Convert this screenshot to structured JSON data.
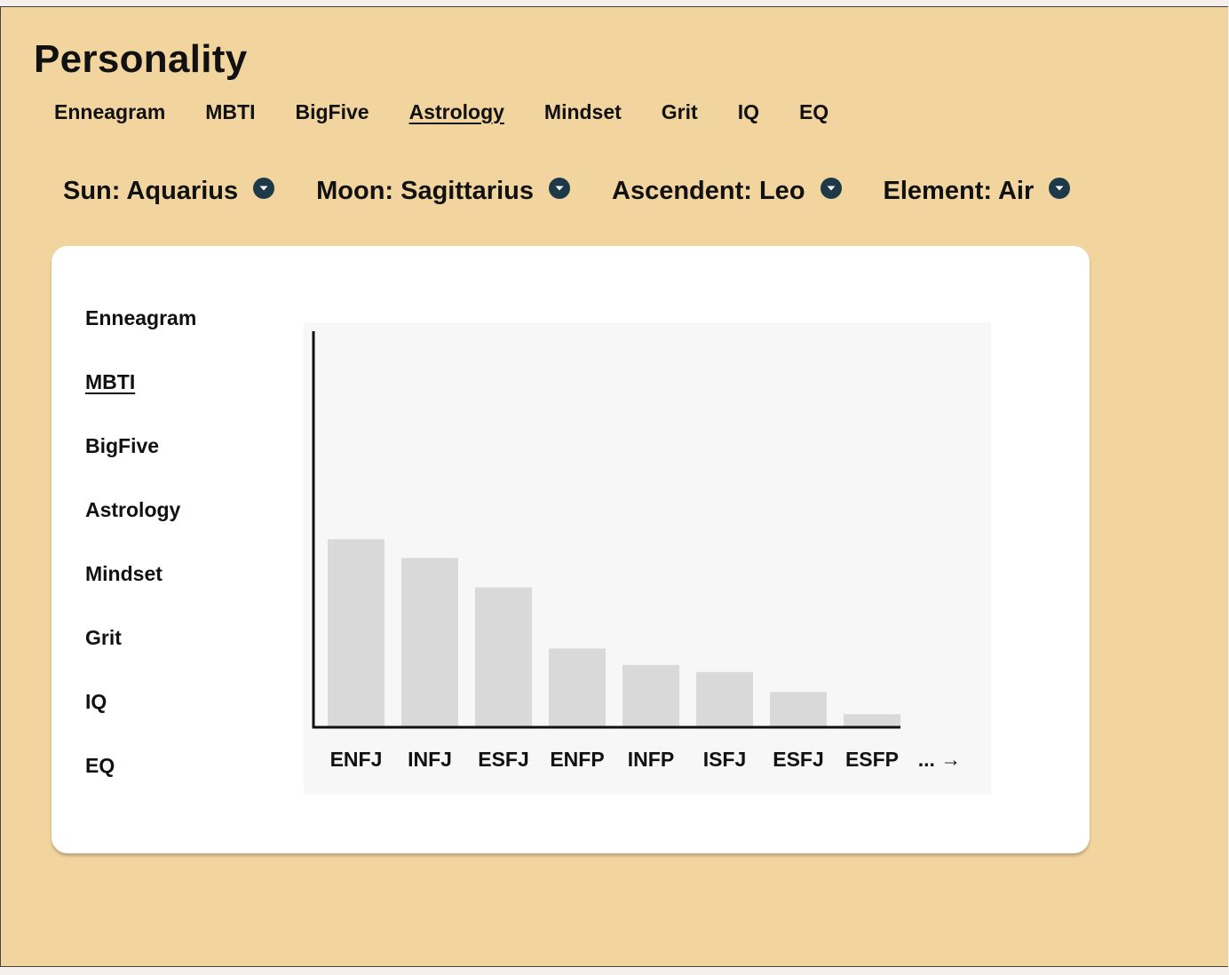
{
  "page": {
    "title": "Personality"
  },
  "top_tabs": [
    {
      "label": "Enneagram",
      "active": false
    },
    {
      "label": "MBTI",
      "active": false
    },
    {
      "label": "BigFive",
      "active": false
    },
    {
      "label": "Astrology",
      "active": true
    },
    {
      "label": "Mindset",
      "active": false
    },
    {
      "label": "Grit",
      "active": false
    },
    {
      "label": "IQ",
      "active": false
    },
    {
      "label": "EQ",
      "active": false
    }
  ],
  "filters": [
    {
      "label": "Sun: Aquarius",
      "icon": "chevron-down-icon"
    },
    {
      "label": "Moon: Sagittarius",
      "icon": "chevron-down-icon"
    },
    {
      "label": "Ascendent: Leo",
      "icon": "chevron-down-icon"
    },
    {
      "label": "Element: Air",
      "icon": "chevron-down-icon"
    }
  ],
  "side_nav": [
    {
      "label": "Enneagram",
      "active": false
    },
    {
      "label": "MBTI",
      "active": true
    },
    {
      "label": "BigFive",
      "active": false
    },
    {
      "label": "Astrology",
      "active": false
    },
    {
      "label": "Mindset",
      "active": false
    },
    {
      "label": "Grit",
      "active": false
    },
    {
      "label": "IQ",
      "active": false
    },
    {
      "label": "EQ",
      "active": false
    }
  ],
  "colors": {
    "page_background": "#f2d49e",
    "card_background": "#ffffff",
    "chart_background": "#f7f7f7",
    "bar": "#d9d9d9",
    "icon": "#1e3a48",
    "text": "#111111"
  },
  "chart_data": {
    "type": "bar",
    "categories": [
      "ENFJ",
      "INFJ",
      "ESFJ",
      "ENFP",
      "INFP",
      "ISFJ",
      "ESFJ",
      "ESFP"
    ],
    "values": [
      16,
      14.4,
      11.9,
      6.7,
      5.3,
      4.7,
      3,
      1.1
    ],
    "yticks": [
      "0%",
      "5%",
      "10%",
      "15%",
      "20%",
      "25%",
      "30%"
    ],
    "ylim": [
      0,
      30
    ],
    "grid": false,
    "more_label": "... →",
    "highlighted_tick": "30%"
  }
}
